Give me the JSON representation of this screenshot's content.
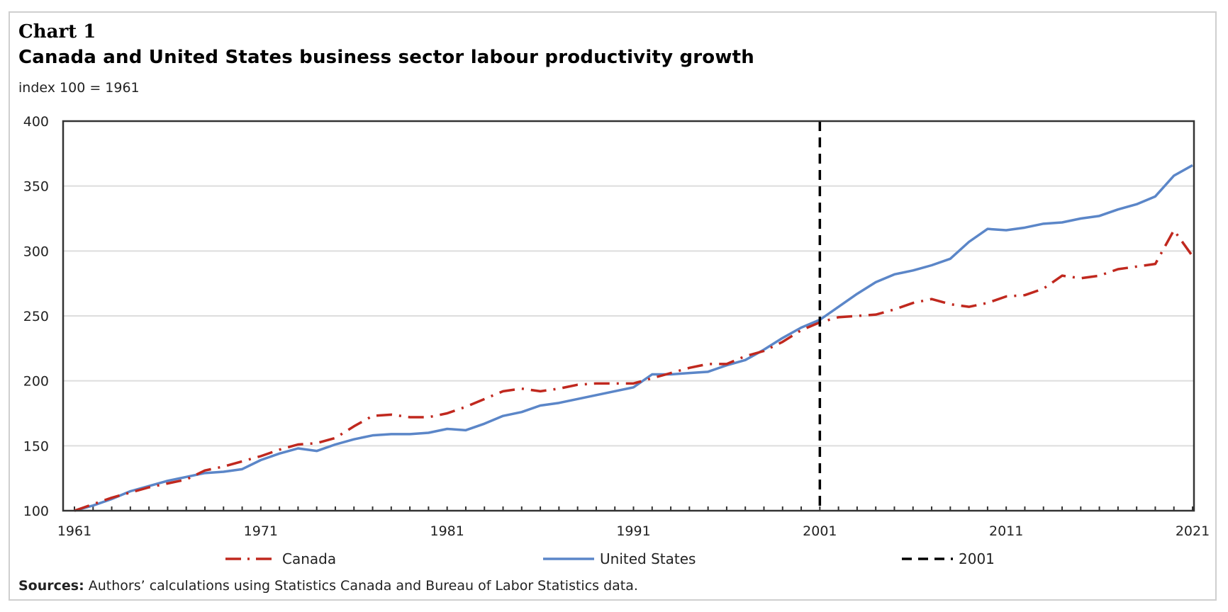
{
  "header": {
    "chart_number": "Chart 1",
    "title": "Canada and United States business sector labour productivity growth",
    "subtitle": "index 100 = 1961"
  },
  "legend": [
    {
      "label": "Canada",
      "color": "#c0281e",
      "style": "dash-dot"
    },
    {
      "label": "United States",
      "color": "#5b86c8",
      "style": "solid"
    },
    {
      "label": "2001",
      "color": "#000000",
      "style": "dashed"
    }
  ],
  "footer": {
    "sources_label": "Sources:",
    "sources_text": " Authors’ calculations using Statistics Canada and Bureau of Labor Statistics data."
  },
  "chart_data": {
    "type": "line",
    "title": "Canada and United States business sector labour productivity growth",
    "subtitle": "index 100 = 1961",
    "xlabel": "",
    "ylabel": "index 100 = 1961",
    "xlim": [
      1961,
      2021
    ],
    "ylim": [
      100,
      400
    ],
    "grid": true,
    "legend_position": "bottom",
    "y_ticks": [
      100,
      150,
      200,
      250,
      300,
      350,
      400
    ],
    "x_tick_labels": [
      "1961",
      "1971",
      "1981",
      "1991",
      "2001",
      "2011",
      "2021"
    ],
    "x_tick_values": [
      1961,
      1971,
      1981,
      1991,
      2001,
      2011,
      2021
    ],
    "x": [
      1961,
      1962,
      1963,
      1964,
      1965,
      1966,
      1967,
      1968,
      1969,
      1970,
      1971,
      1972,
      1973,
      1974,
      1975,
      1976,
      1977,
      1978,
      1979,
      1980,
      1981,
      1982,
      1983,
      1984,
      1985,
      1986,
      1987,
      1988,
      1989,
      1990,
      1991,
      1992,
      1993,
      1994,
      1995,
      1996,
      1997,
      1998,
      1999,
      2000,
      2001,
      2002,
      2003,
      2004,
      2005,
      2006,
      2007,
      2008,
      2009,
      2010,
      2011,
      2012,
      2013,
      2014,
      2015,
      2016,
      2017,
      2018,
      2019,
      2020,
      2021
    ],
    "series": [
      {
        "name": "Canada",
        "color": "#c0281e",
        "style": "dash-dot",
        "values": [
          100,
          105,
          110,
          114,
          118,
          121,
          124,
          131,
          134,
          138,
          142,
          147,
          151,
          152,
          156,
          165,
          173,
          174,
          172,
          172,
          175,
          180,
          186,
          192,
          194,
          192,
          194,
          197,
          198,
          198,
          198,
          202,
          206,
          210,
          213,
          213,
          219,
          223,
          230,
          239,
          245,
          249,
          250,
          251,
          255,
          260,
          263,
          259,
          257,
          260,
          265,
          266,
          271,
          281,
          279,
          281,
          286,
          288,
          290,
          316,
          296
        ]
      },
      {
        "name": "United States",
        "color": "#5b86c8",
        "style": "solid",
        "values": [
          100,
          104,
          109,
          115,
          119,
          123,
          126,
          129,
          130,
          132,
          139,
          144,
          148,
          146,
          151,
          155,
          158,
          159,
          159,
          160,
          163,
          162,
          167,
          173,
          176,
          181,
          183,
          186,
          189,
          192,
          195,
          205,
          205,
          206,
          207,
          212,
          216,
          224,
          233,
          241,
          247,
          257,
          267,
          276,
          282,
          285,
          289,
          294,
          307,
          317,
          316,
          318,
          321,
          322,
          325,
          327,
          332,
          336,
          342,
          358,
          366
        ]
      }
    ],
    "annotations": [
      {
        "type": "vertical-line",
        "x": 2001,
        "label": "2001",
        "color": "#000000",
        "style": "dashed"
      }
    ]
  }
}
